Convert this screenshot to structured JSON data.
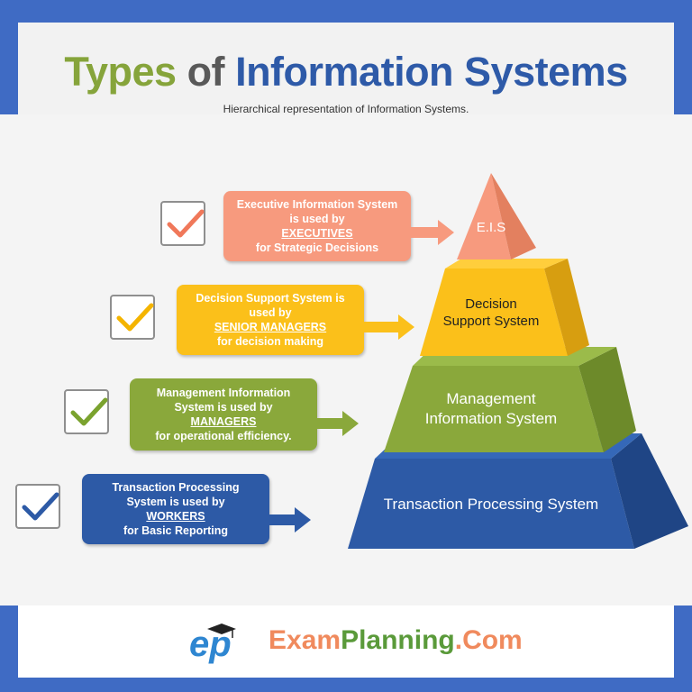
{
  "title": {
    "word1": "Types",
    "word2": "of",
    "word3": "Information Systems"
  },
  "subtitle": "Hierarchical representation of Information Systems.",
  "colors": {
    "frame": "#3f6bc4",
    "eis": "#f79a7e",
    "dss": "#fbc01a",
    "mis": "#8aa83b",
    "tps": "#2d5aa6"
  },
  "levels": [
    {
      "pyramid_label": "E.I.S",
      "callout_pre": "Executive Information System is used by",
      "role": "EXECUTIVES",
      "callout_post": "for Strategic Decisions",
      "check_icon": "checkmark-icon"
    },
    {
      "pyramid_label_line1": "Decision",
      "pyramid_label_line2": "Support System",
      "callout_pre": "Decision Support System is used by",
      "role": "SENIOR MANAGERS",
      "callout_post": "for decision making",
      "check_icon": "checkmark-icon"
    },
    {
      "pyramid_label_line1": "Management",
      "pyramid_label_line2": "Information System",
      "callout_pre": "Management Information System is used by",
      "role": "MANAGERS",
      "callout_post": "for operational efficiency.",
      "check_icon": "checkmark-icon"
    },
    {
      "pyramid_label": "Transaction Processing System",
      "callout_pre": "Transaction Processing System is used by",
      "role": "WORKERS",
      "callout_post": "for Basic Reporting",
      "check_icon": "checkmark-icon"
    }
  ],
  "logo": {
    "mark": "ep",
    "text_part1": "Exam",
    "text_part2": "Planning",
    "text_part3": ".Com"
  }
}
